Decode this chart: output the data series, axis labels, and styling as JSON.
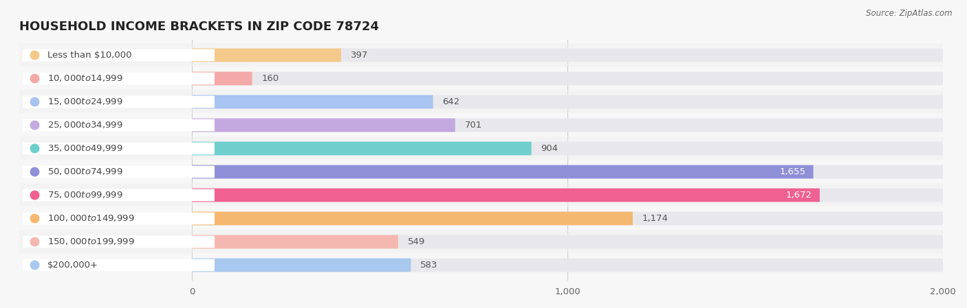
{
  "title": "Household Income Brackets in Zip Code 78724",
  "title_upper": "HOUSEHOLD INCOME BRACKETS IN ZIP CODE 78724",
  "source": "Source: ZipAtlas.com",
  "categories": [
    "Less than $10,000",
    "$10,000 to $14,999",
    "$15,000 to $24,999",
    "$25,000 to $34,999",
    "$35,000 to $49,999",
    "$50,000 to $74,999",
    "$75,000 to $99,999",
    "$100,000 to $149,999",
    "$150,000 to $199,999",
    "$200,000+"
  ],
  "values": [
    397,
    160,
    642,
    701,
    904,
    1655,
    1672,
    1174,
    549,
    583
  ],
  "bar_colors": [
    "#f5c98a",
    "#f4a8a8",
    "#a8c4f0",
    "#c4a8e0",
    "#6ecfcc",
    "#9090d8",
    "#f06090",
    "#f5b870",
    "#f5b8b0",
    "#a8c8f0"
  ],
  "background_color": "#f7f7f7",
  "bar_bg_color": "#e8e8ec",
  "xlim": [
    0,
    2000
  ],
  "xticks": [
    0,
    1000,
    2000
  ],
  "title_fontsize": 13,
  "label_fontsize": 9.5,
  "value_fontsize": 9.5,
  "bar_height": 0.58
}
